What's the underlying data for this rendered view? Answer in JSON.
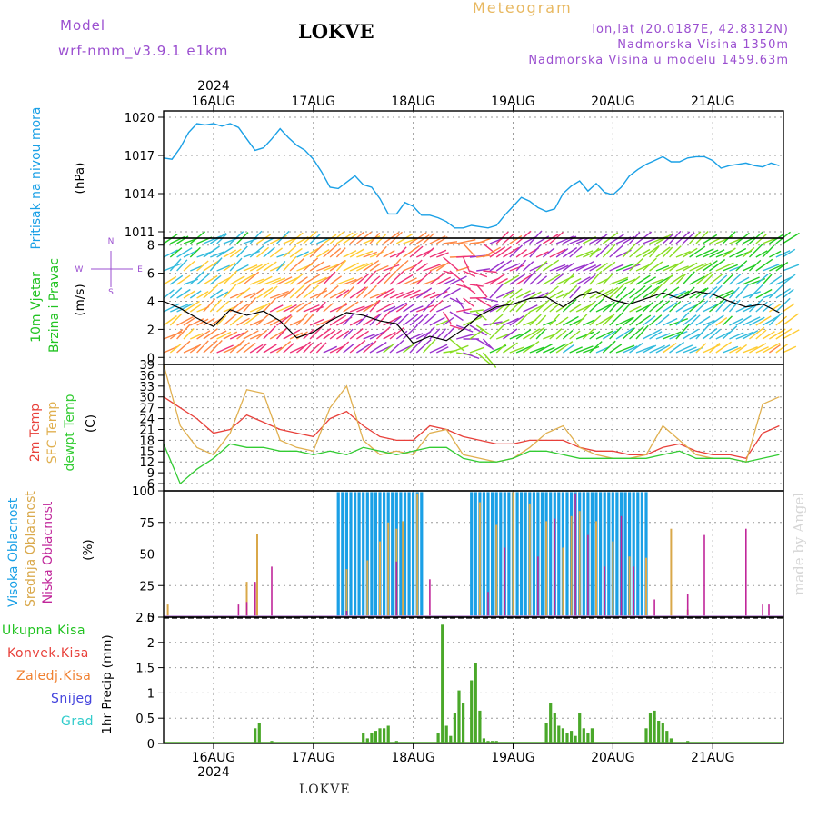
{
  "header": {
    "model_label": "Model",
    "model_name": "wrf-nmm_v3.9.1 e1km",
    "station": "LOKVE",
    "meteogram_label": "Meteogram",
    "coords": "lon,lat (20.0187E, 42.8312N)",
    "elevation": "Nadmorska Visina 1350m",
    "model_elevation": "Nadmorska Visina u modelu 1459.63m"
  },
  "footer": {
    "station": "LOKVE"
  },
  "credit": "made by Angel",
  "colors": {
    "pressure": "#1aa0e6",
    "wind_label": "#22c322",
    "wind_speed_line": "#000000",
    "t2m": "#e8403a",
    "tsfc": "#e0b050",
    "dewpt": "#33cc33",
    "cloud_high": "#1aa0e6",
    "cloud_mid": "#d9a84a",
    "cloud_low": "#c0269a",
    "precip_total": "#4aa82a",
    "precip_conv": "#e8403a",
    "precip_frz": "#f08030",
    "precip_snow": "#4444dd",
    "precip_grad": "#33cccc",
    "compass": "#9b4fd0"
  },
  "chart_data": [
    {
      "type": "line",
      "id": "pressure",
      "panel_label": "Pritisak na nivou mora",
      "unit_label": "(hPa)",
      "top_year": "2024",
      "top_day_labels": [
        "16AUG",
        "17AUG",
        "18AUG",
        "19AUG",
        "20AUG",
        "21AUG"
      ],
      "x_unit": "hours from 2024-08-15 12:00 UTC",
      "xlim": [
        0,
        149
      ],
      "yticks": [
        1011,
        1014,
        1017,
        1020
      ],
      "ylim": [
        1010.5,
        1020.5
      ],
      "series": [
        {
          "x": [
            0,
            2,
            4,
            6,
            8,
            10,
            12,
            14,
            16,
            18,
            20,
            22,
            24,
            26,
            28,
            30,
            32,
            34,
            36,
            38,
            40,
            42,
            44,
            46,
            48,
            50,
            52,
            54,
            56,
            58,
            60,
            62,
            64,
            66,
            68,
            70,
            72,
            74,
            76,
            78,
            80,
            82,
            84,
            86,
            88,
            90,
            92,
            94,
            96,
            98,
            100,
            102,
            104,
            106,
            108,
            110,
            112,
            114,
            116,
            118,
            120,
            122,
            124,
            126,
            128,
            130,
            132,
            134,
            136,
            138,
            140,
            142,
            144,
            146,
            148
          ],
          "values": [
            1016.8,
            1016.7,
            1017.6,
            1018.8,
            1019.5,
            1019.4,
            1019.5,
            1019.3,
            1019.5,
            1019.2,
            1018.3,
            1017.4,
            1017.6,
            1018.3,
            1019.1,
            1018.4,
            1017.8,
            1017.4,
            1016.7,
            1015.7,
            1014.5,
            1014.4,
            1014.9,
            1015.4,
            1014.7,
            1014.5,
            1013.6,
            1012.4,
            1012.4,
            1013.3,
            1013.0,
            1012.3,
            1012.3,
            1012.1,
            1011.8,
            1011.3,
            1011.3,
            1011.5,
            1011.4,
            1011.3,
            1011.5,
            1012.3,
            1013.0,
            1013.7,
            1013.4,
            1012.9,
            1012.6,
            1012.8,
            1014.0,
            1014.6,
            1015.0,
            1014.2,
            1014.8,
            1014.1,
            1013.9,
            1014.5,
            1015.4,
            1015.9,
            1016.3,
            1016.6,
            1016.9,
            1016.5,
            1016.5,
            1016.8,
            1016.9,
            1016.9,
            1016.6,
            1016.0,
            1016.2,
            1016.3,
            1016.4,
            1016.2,
            1016.1,
            1016.4,
            1016.2
          ]
        }
      ]
    },
    {
      "type": "line",
      "id": "wind",
      "panel_label": "10m Vjetar Brzina i Pravac",
      "panel_label_1": "10m Vjetar",
      "panel_label_2": "Brzina i Pravac",
      "unit_label": "(m/s)",
      "compass": {
        "n": "N",
        "s": "S",
        "w": "W",
        "e": "E"
      },
      "yticks": [
        0,
        2,
        4,
        6,
        8
      ],
      "ylim": [
        -0.5,
        8.5
      ],
      "series": [
        {
          "name": "speed",
          "x": [
            0,
            4,
            8,
            12,
            16,
            20,
            24,
            28,
            32,
            36,
            40,
            44,
            48,
            52,
            56,
            60,
            64,
            68,
            72,
            76,
            80,
            84,
            88,
            92,
            96,
            100,
            104,
            108,
            112,
            116,
            120,
            124,
            128,
            132,
            136,
            140,
            144,
            148
          ],
          "values": [
            4.0,
            3.5,
            2.8,
            2.2,
            3.4,
            3.0,
            3.3,
            2.6,
            1.4,
            1.8,
            2.6,
            3.2,
            3.0,
            2.6,
            2.4,
            1.0,
            1.5,
            1.2,
            2.0,
            3.0,
            3.6,
            3.8,
            4.2,
            4.3,
            3.6,
            4.4,
            4.7,
            4.1,
            3.8,
            4.2,
            4.6,
            4.2,
            4.7,
            4.5,
            4.0,
            3.6,
            3.8,
            3.2
          ]
        }
      ]
    },
    {
      "type": "line",
      "id": "temperature",
      "panel_label": "2m Temp / SFC Temp / dewpt Temp",
      "series_names": [
        "2m Temp",
        "SFC Temp",
        "dewpt Temp"
      ],
      "unit_label": "(C)",
      "yticks": [
        6,
        9,
        12,
        15,
        18,
        21,
        24,
        27,
        30,
        33,
        36,
        39
      ],
      "ylim": [
        4,
        39
      ],
      "series": [
        {
          "name": "2m Temp",
          "x": [
            0,
            4,
            8,
            12,
            16,
            20,
            24,
            28,
            32,
            36,
            40,
            44,
            48,
            52,
            56,
            60,
            64,
            68,
            72,
            76,
            80,
            84,
            88,
            92,
            96,
            100,
            104,
            108,
            112,
            116,
            120,
            124,
            128,
            132,
            136,
            140,
            144,
            148
          ],
          "values": [
            30,
            27,
            24,
            20,
            21,
            25,
            23,
            21,
            20,
            19,
            24,
            26,
            22,
            19,
            18,
            18,
            22,
            21,
            19,
            18,
            17,
            17,
            18,
            18,
            18,
            16,
            15,
            15,
            14,
            14,
            16,
            17,
            15,
            14,
            14,
            13,
            20,
            22
          ]
        },
        {
          "name": "SFC Temp",
          "x": [
            0,
            4,
            8,
            12,
            16,
            20,
            24,
            28,
            32,
            36,
            40,
            44,
            48,
            52,
            56,
            60,
            64,
            68,
            72,
            76,
            80,
            84,
            88,
            92,
            96,
            100,
            104,
            108,
            112,
            116,
            120,
            124,
            128,
            132,
            136,
            140,
            144,
            148
          ],
          "values": [
            39,
            22,
            16,
            14,
            20,
            32,
            31,
            18,
            16,
            15,
            27,
            33,
            18,
            14,
            15,
            14,
            20,
            21,
            14,
            13,
            12,
            13,
            16,
            20,
            22,
            16,
            14,
            13,
            13,
            14,
            22,
            18,
            14,
            13,
            13,
            12,
            28,
            30
          ]
        },
        {
          "name": "dewpt Temp",
          "x": [
            0,
            4,
            8,
            12,
            16,
            20,
            24,
            28,
            32,
            36,
            40,
            44,
            48,
            52,
            56,
            60,
            64,
            68,
            72,
            76,
            80,
            84,
            88,
            92,
            96,
            100,
            104,
            108,
            112,
            116,
            120,
            124,
            128,
            132,
            136,
            140,
            144,
            148
          ],
          "values": [
            17,
            6,
            10,
            13,
            17,
            16,
            16,
            15,
            15,
            14,
            15,
            14,
            16,
            15,
            14,
            15,
            16,
            16,
            13,
            12,
            12,
            13,
            15,
            15,
            14,
            13,
            13,
            13,
            13,
            13,
            14,
            15,
            13,
            13,
            13,
            12,
            13,
            14
          ]
        }
      ]
    },
    {
      "type": "bar",
      "id": "clouds",
      "panel_label": "Visoka Oblacnost / Srednja Oblacnost / Niska Oblacnost",
      "series_names": [
        "Visoka Oblacnost",
        "Srednja Oblacnost",
        "Niska Oblacnost"
      ],
      "unit_label": "(%)",
      "yticks": [
        0,
        25,
        50,
        75,
        100
      ],
      "ylim": [
        0,
        100
      ],
      "high_cover_windows": [
        [
          42,
          62
        ],
        [
          74,
          116
        ]
      ],
      "high_value": 99,
      "mid_samples": [
        [
          1,
          10
        ],
        [
          20,
          28
        ],
        [
          22,
          27
        ],
        [
          22.5,
          66
        ],
        [
          44,
          38
        ],
        [
          49,
          45
        ],
        [
          52,
          60
        ],
        [
          54,
          75
        ],
        [
          56,
          70
        ],
        [
          57.5,
          76
        ],
        [
          61,
          98
        ],
        [
          76,
          91
        ],
        [
          80,
          73
        ],
        [
          84,
          99
        ],
        [
          88,
          90
        ],
        [
          92,
          76
        ],
        [
          96,
          55
        ],
        [
          98,
          80
        ],
        [
          100,
          84
        ],
        [
          104,
          76
        ],
        [
          108,
          60
        ],
        [
          112,
          48
        ],
        [
          116,
          47
        ],
        [
          122,
          70
        ],
        [
          126,
          6
        ]
      ],
      "low_samples": [
        [
          18,
          10
        ],
        [
          20,
          12
        ],
        [
          22,
          28
        ],
        [
          26,
          40
        ],
        [
          44,
          5
        ],
        [
          56,
          44
        ],
        [
          64,
          30
        ],
        [
          78,
          20
        ],
        [
          82,
          55
        ],
        [
          90,
          48
        ],
        [
          94,
          78
        ],
        [
          99,
          98
        ],
        [
          102,
          65
        ],
        [
          106,
          40
        ],
        [
          110,
          80
        ],
        [
          113,
          40
        ],
        [
          118,
          14
        ],
        [
          126,
          18
        ],
        [
          130,
          65
        ],
        [
          140,
          70
        ],
        [
          144,
          10
        ],
        [
          145.5,
          10
        ]
      ]
    },
    {
      "type": "bar",
      "id": "precip",
      "panel_label": "1hr Precip",
      "unit_label": "1hr Precip (mm)",
      "legend": [
        "Ukupna Kisa",
        "Konvek.Kisa",
        "Zaledj.Kisa",
        "Snijeg",
        "Grad"
      ],
      "yticks": [
        0,
        0.5,
        1,
        1.5,
        2,
        2.5
      ],
      "ylim": [
        0,
        2.5
      ],
      "bottom_year": "2024",
      "bottom_day_labels": [
        "16AUG",
        "17AUG",
        "18AUG",
        "19AUG",
        "20AUG",
        "21AUG"
      ],
      "series": [
        {
          "name": "Ukupna Kisa",
          "x": [
            22,
            23,
            26,
            48,
            49,
            50,
            51,
            52,
            53,
            54,
            56,
            66,
            67,
            68,
            69,
            70,
            71,
            72,
            74,
            75,
            76,
            77,
            78,
            79,
            80,
            92,
            93,
            94,
            95,
            96,
            97,
            98,
            99,
            100,
            101,
            102,
            103,
            116,
            117,
            118,
            119,
            120,
            121,
            122,
            126,
            144
          ],
          "values": [
            0.3,
            0.4,
            0.05,
            0.2,
            0.1,
            0.2,
            0.25,
            0.3,
            0.3,
            0.35,
            0.05,
            0.2,
            2.35,
            0.35,
            0.15,
            0.6,
            1.05,
            0.8,
            1.25,
            1.6,
            0.65,
            0.1,
            0.05,
            0.05,
            0.05,
            0.4,
            0.8,
            0.6,
            0.35,
            0.3,
            0.2,
            0.25,
            0.15,
            0.6,
            0.3,
            0.2,
            0.3,
            0.3,
            0.6,
            0.65,
            0.45,
            0.4,
            0.25,
            0.1,
            0.05,
            0.02
          ]
        }
      ]
    }
  ]
}
